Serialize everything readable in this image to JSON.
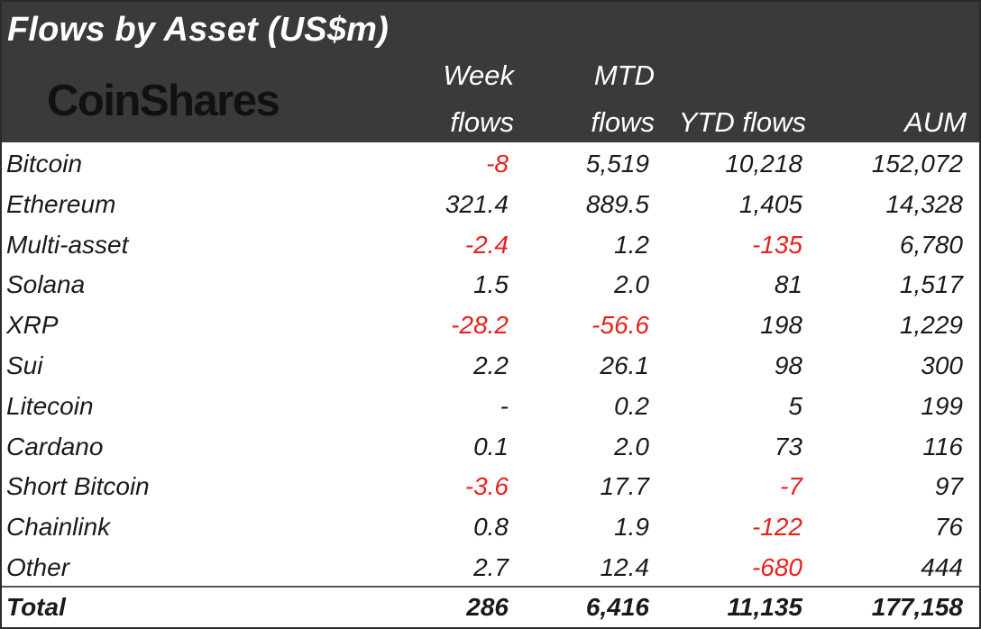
{
  "title": "Flows by Asset (US$m)",
  "logo_text": "CoinShares",
  "columns": {
    "week_line1": "Week",
    "week_line2": "flows",
    "mtd_line1": "MTD",
    "mtd_line2": "flows",
    "ytd": "YTD flows",
    "aum": "AUM"
  },
  "colors": {
    "header_bg": "#3a3a3a",
    "negative": "#e8211d"
  },
  "rows": [
    {
      "asset": "Bitcoin",
      "week": "-8",
      "mtd": "5,519",
      "ytd": "10,218",
      "aum": "152,072"
    },
    {
      "asset": "Ethereum",
      "week": "321.4",
      "mtd": "889.5",
      "ytd": "1,405",
      "aum": "14,328"
    },
    {
      "asset": "Multi-asset",
      "week": "-2.4",
      "mtd": "1.2",
      "ytd": "-135",
      "aum": "6,780"
    },
    {
      "asset": "Solana",
      "week": "1.5",
      "mtd": "2.0",
      "ytd": "81",
      "aum": "1,517"
    },
    {
      "asset": "XRP",
      "week": "-28.2",
      "mtd": "-56.6",
      "ytd": "198",
      "aum": "1,229"
    },
    {
      "asset": "Sui",
      "week": "2.2",
      "mtd": "26.1",
      "ytd": "98",
      "aum": "300"
    },
    {
      "asset": "Litecoin",
      "week": "-",
      "mtd": "0.2",
      "ytd": "5",
      "aum": "199"
    },
    {
      "asset": "Cardano",
      "week": "0.1",
      "mtd": "2.0",
      "ytd": "73",
      "aum": "116"
    },
    {
      "asset": "Short Bitcoin",
      "week": "-3.6",
      "mtd": "17.7",
      "ytd": "-7",
      "aum": "97"
    },
    {
      "asset": "Chainlink",
      "week": "0.8",
      "mtd": "1.9",
      "ytd": "-122",
      "aum": "76"
    },
    {
      "asset": "Other",
      "week": "2.7",
      "mtd": "12.4",
      "ytd": "-680",
      "aum": "444"
    }
  ],
  "total": {
    "asset": "Total",
    "week": "286",
    "mtd": "6,416",
    "ytd": "11,135",
    "aum": "177,158"
  }
}
